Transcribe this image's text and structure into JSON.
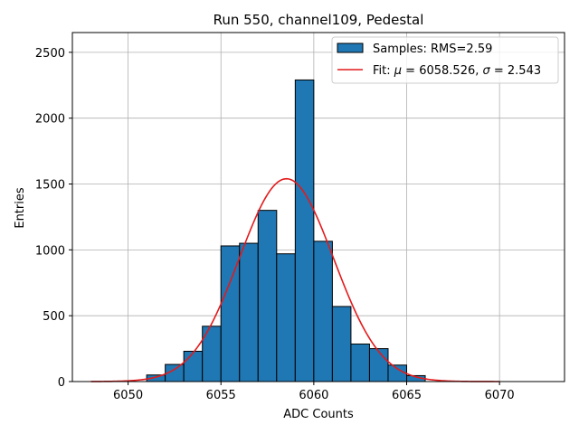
{
  "chart_data": {
    "type": "bar",
    "title": "Run 550, channel109, Pedestal",
    "xlabel": "ADC Counts",
    "ylabel": "Entries",
    "xlim": [
      6047,
      6073.5
    ],
    "ylim": [
      0,
      2650
    ],
    "xticks": [
      6050,
      6055,
      6060,
      6065,
      6070
    ],
    "yticks": [
      0,
      500,
      1000,
      1500,
      2000,
      2500
    ],
    "grid": true,
    "legend_position": "top-right",
    "histogram": {
      "name": "Samples: RMS=2.59",
      "bin_width": 1,
      "bin_lefts": [
        6051,
        6052,
        6053,
        6054,
        6055,
        6056,
        6057,
        6058,
        6059,
        6060,
        6061,
        6062,
        6063,
        6064,
        6065
      ],
      "values": [
        50,
        130,
        230,
        420,
        1030,
        1050,
        1300,
        970,
        2290,
        1065,
        570,
        285,
        250,
        125,
        45
      ],
      "color": "#1f77b4",
      "edge_color": "#000000"
    },
    "fit": {
      "name_prefix": "Fit: ",
      "mu_symbol": "μ",
      "mu_text": " = 6058.526, ",
      "sigma_symbol": "σ",
      "sigma_text": " = 2.543",
      "mu": 6058.526,
      "sigma": 2.543,
      "amplitude": 1540,
      "x_range": [
        6048,
        6070
      ],
      "color": "#e31a1c"
    },
    "grid_color": "#b0b0b0"
  }
}
